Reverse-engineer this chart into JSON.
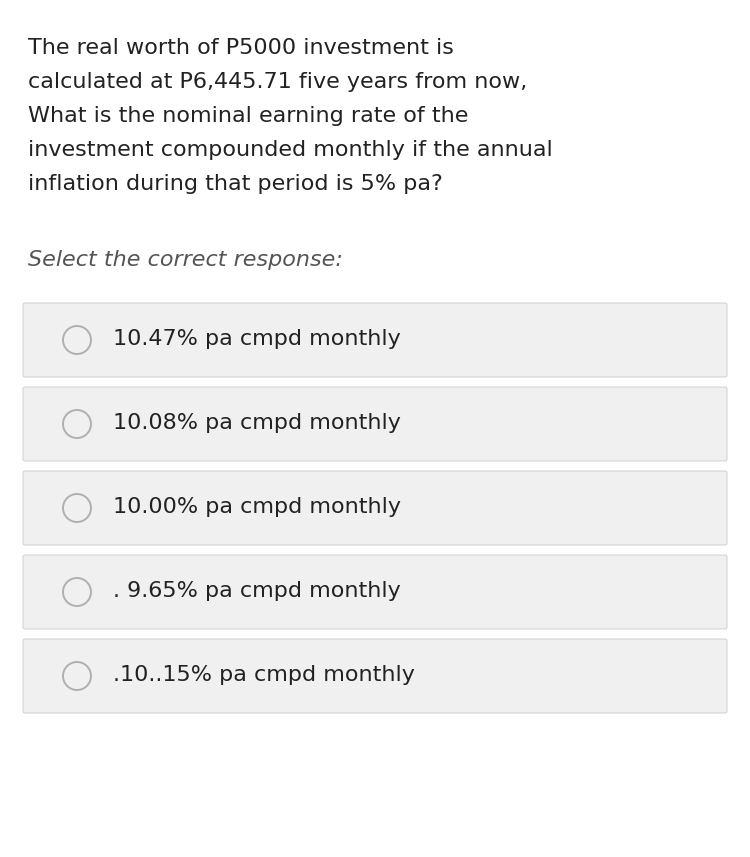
{
  "background_color": "#ffffff",
  "question_text_lines": [
    "The real worth of P5000 investment is",
    "calculated at P6,445.71 five years from now,",
    "What is the nominal earning rate of the",
    "investment compounded monthly if the annual",
    "inflation during that period is 5% pa?"
  ],
  "select_text": "Select the correct response:",
  "options": [
    "10.47% pa cmpd monthly",
    "10.08% pa cmpd monthly",
    "10.00% pa cmpd monthly",
    ". 9.65% pa cmpd monthly",
    ".10..15% pa cmpd monthly"
  ],
  "option_box_color": "#f0f0f0",
  "option_box_border": "#d0d0d0",
  "circle_edge_color": "#b0b0b0",
  "circle_fill_color": "#f0f0f0",
  "text_color": "#222222",
  "select_text_color": "#555555",
  "question_fontsize": 16.0,
  "select_fontsize": 16.0,
  "option_fontsize": 16.0,
  "fig_width": 7.5,
  "fig_height": 8.57,
  "dpi": 100
}
